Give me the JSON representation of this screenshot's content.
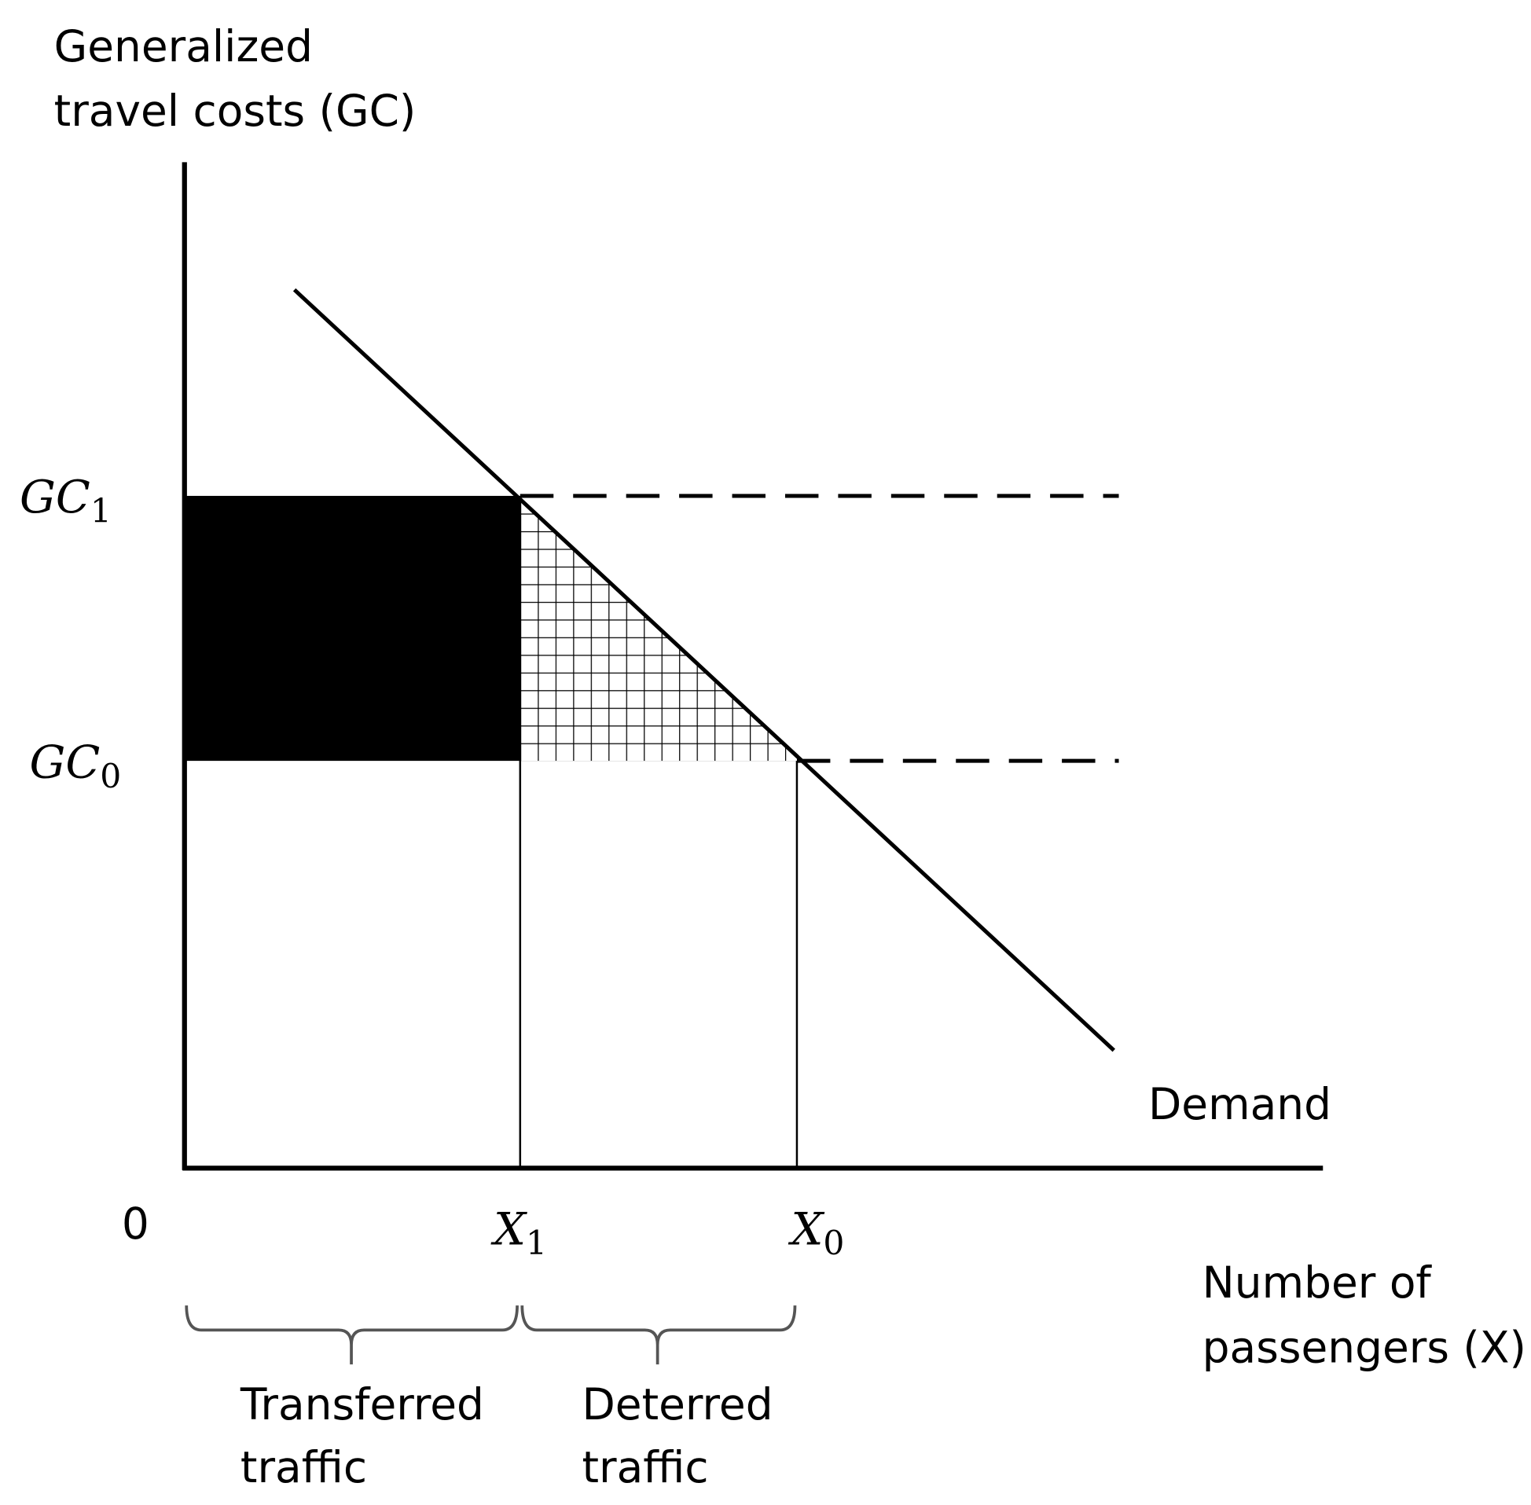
{
  "axes": {
    "y_label": [
      "Generalized",
      "travel costs (GC)"
    ],
    "x_label": [
      "Number of",
      "passengers (X)"
    ],
    "origin": "0"
  },
  "levels": [
    {
      "base": "GC",
      "sub": "1"
    },
    {
      "base": "GC",
      "sub": "0"
    }
  ],
  "quantities": [
    {
      "base": "X",
      "sub": "1"
    },
    {
      "base": "X",
      "sub": "0"
    }
  ],
  "curve_label": "Demand",
  "braces": [
    {
      "label": [
        "Transferred",
        "traffic"
      ]
    },
    {
      "label": [
        "Deterred",
        "traffic"
      ]
    }
  ]
}
